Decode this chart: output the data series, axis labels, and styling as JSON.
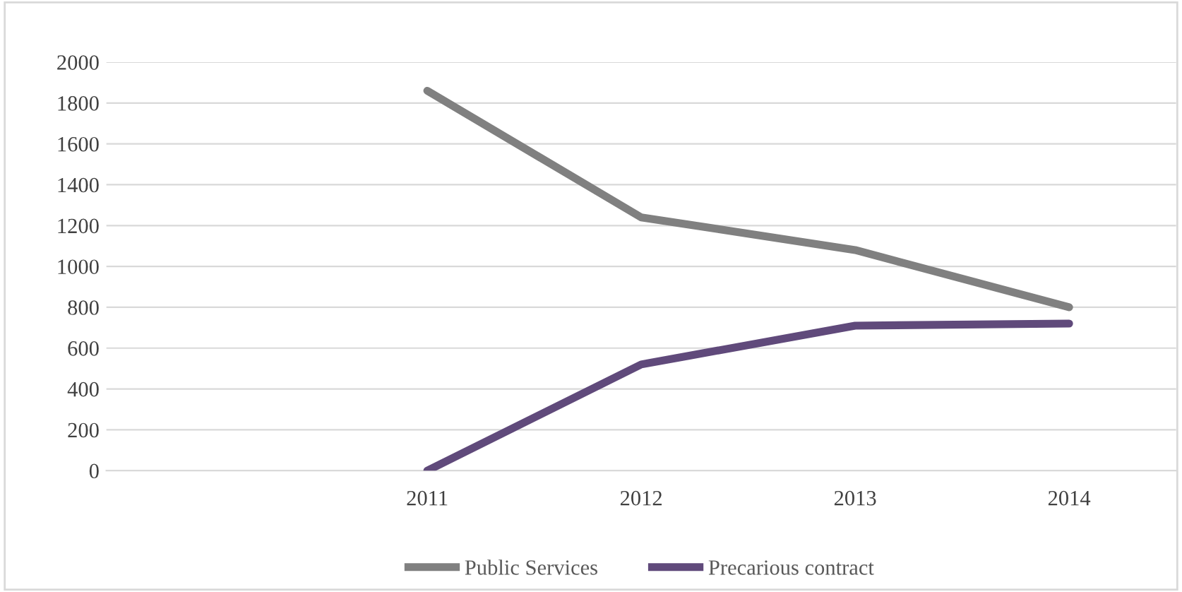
{
  "chart_data": {
    "type": "line",
    "categories": [
      null,
      "2011",
      "2012",
      "2013",
      "2014"
    ],
    "series": [
      {
        "name": "Public Services",
        "color": "#808080",
        "values": [
          null,
          1860,
          1240,
          1080,
          800
        ]
      },
      {
        "name": "Precarious contract",
        "color": "#604a7b",
        "values": [
          null,
          0,
          520,
          710,
          720
        ]
      }
    ],
    "ylim": [
      0,
      2000
    ],
    "yticks": [
      0,
      200,
      400,
      600,
      800,
      1000,
      1200,
      1400,
      1600,
      1800,
      2000
    ],
    "grid": "y",
    "legend": "bottom",
    "marker": "none",
    "line_style": "solid"
  }
}
